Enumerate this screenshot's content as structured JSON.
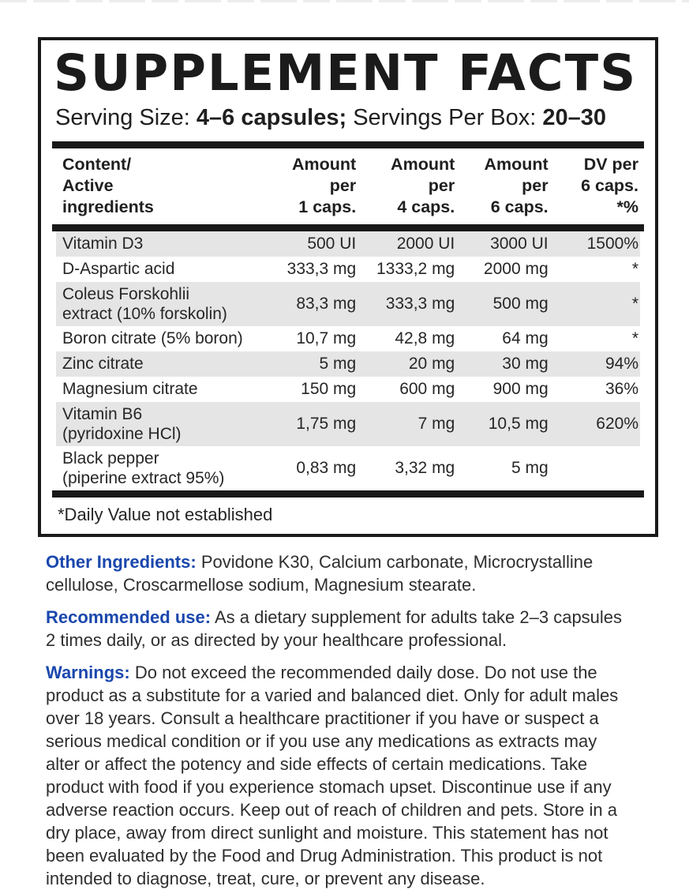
{
  "panel": {
    "title": "SUPPLEMENT FACTS",
    "serving_line": {
      "serving_size_label": "Serving Size: ",
      "serving_size_value": "4–6 capsules;",
      "servings_per_box_label": " Servings Per Box: ",
      "servings_per_box_value": "20–30"
    },
    "table": {
      "header": [
        "Content/\nActive\ningredients",
        "Amount\nper\n1 caps.",
        "Amount\nper\n4 caps.",
        "Amount\nper\n6 caps.",
        "DV per\n6 caps.\n*%"
      ],
      "rows": [
        {
          "name": "Vitamin D3",
          "per1": "500 UI",
          "per4": "2000 UI",
          "per6": "3000 UI",
          "dv": "1500%"
        },
        {
          "name": "D-Aspartic acid",
          "per1": "333,3 mg",
          "per4": "1333,2 mg",
          "per6": "2000 mg",
          "dv": "*"
        },
        {
          "name": "Coleus Forskohlii\nextract (10% forskolin)",
          "per1": "83,3 mg",
          "per4": "333,3 mg",
          "per6": "500 mg",
          "dv": "*"
        },
        {
          "name": "Boron citrate (5% boron)",
          "per1": "10,7 mg",
          "per4": "42,8 mg",
          "per6": "64 mg",
          "dv": "*"
        },
        {
          "name": "Zinc citrate",
          "per1": "5 mg",
          "per4": "20 mg",
          "per6": "30 mg",
          "dv": "94%"
        },
        {
          "name": "Magnesium citrate",
          "per1": "150 mg",
          "per4": "600 mg",
          "per6": "900 mg",
          "dv": "36%"
        },
        {
          "name": "Vitamin B6\n(pyridoxine HCl)",
          "per1": "1,75 mg",
          "per4": "7 mg",
          "per6": "10,5 mg",
          "dv": "620%"
        },
        {
          "name": "Black pepper\n(piperine extract 95%)",
          "per1": "0,83 mg",
          "per4": "3,32 mg",
          "per6": "5 mg",
          "dv": ""
        }
      ]
    },
    "footnote": "*Daily Value not established"
  },
  "sections": [
    {
      "label": "Other Ingredients:",
      "text": "Povidone K30, Calcium carbonate, Microcrystalline cellulose, Croscarmellose sodium, Magnesium stearate."
    },
    {
      "label": "Recommended use:",
      "text": "As a dietary supplement for adults take 2–3 capsules 2 times daily, or as directed by your healthcare professional."
    },
    {
      "label": "Warnings:",
      "text": "Do not exceed the recommended daily dose. Do not use the product as a substitute for a varied and balanced diet. Only for adult males over 18 years. Consult a healthcare practitioner if you have or suspect a serious medical condition or if you use any medications as extracts may alter or affect the potency and side effects of certain medications. Take product with food if you experience stomach upset. Discontinue use if any adverse reaction occurs. Keep out of reach of children and pets. Store in a dry place, away from direct sunlight and moisture. This statement has not been evaluated by the Food and Drug Administration. This product is not intended to diagnose, treat, cure, or prevent any disease."
    }
  ],
  "colors": {
    "accent_blue": "#1a47ad",
    "shaded_row_gray": "#e5e5e5",
    "panel_black": "#1a1a1a"
  }
}
